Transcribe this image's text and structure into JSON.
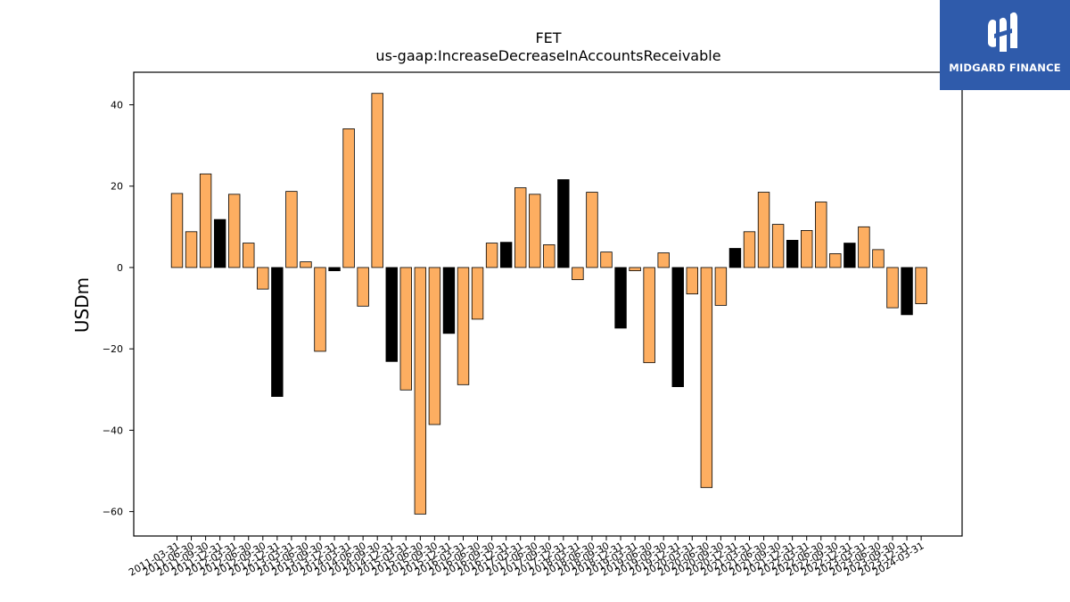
{
  "logo": {
    "text": "MIDGARD FINANCE"
  },
  "chart_data": {
    "type": "bar",
    "title": "FET",
    "subtitle": "us-gaap:IncreaseDecreaseInAccountsReceivable",
    "ylabel": "USDm",
    "ylim": [
      -66,
      48
    ],
    "yticks": [
      -60,
      -40,
      -20,
      0,
      20,
      40
    ],
    "grid": false,
    "colors": {
      "bar": "#fdae61",
      "highlight": "#000000",
      "edge": "#000000"
    },
    "categories": [
      "2011-03-31",
      "2011-06-30",
      "2011-09-30",
      "2011-12-31",
      "2012-03-31",
      "2012-06-30",
      "2012-09-30",
      "2012-12-31",
      "2013-03-31",
      "2013-06-30",
      "2013-09-30",
      "2013-12-31",
      "2014-03-31",
      "2014-06-30",
      "2014-09-30",
      "2014-12-31",
      "2015-03-31",
      "2015-06-30",
      "2015-09-30",
      "2015-12-31",
      "2016-03-31",
      "2016-06-30",
      "2016-09-30",
      "2016-12-31",
      "2017-03-31",
      "2017-06-30",
      "2017-09-30",
      "2017-12-31",
      "2018-03-31",
      "2018-06-30",
      "2018-09-30",
      "2018-12-31",
      "2019-03-31",
      "2019-06-30",
      "2019-09-30",
      "2019-12-31",
      "2020-03-31",
      "2020-06-30",
      "2020-09-30",
      "2020-12-31",
      "2021-03-31",
      "2021-06-30",
      "2021-09-30",
      "2021-12-31",
      "2022-03-31",
      "2022-06-30",
      "2022-09-30",
      "2022-12-31",
      "2023-03-31",
      "2023-06-30",
      "2023-09-30",
      "2023-12-31",
      "2024-03-31"
    ],
    "values": [
      18.2,
      8.8,
      23.0,
      11.8,
      18.0,
      6.0,
      -5.3,
      -31.7,
      18.7,
      1.4,
      -20.6,
      -0.8,
      34.1,
      -9.5,
      42.8,
      -23.1,
      -30.1,
      -60.6,
      -38.6,
      -16.2,
      -28.8,
      -12.7,
      6.0,
      6.2,
      19.6,
      18.0,
      5.6,
      21.6,
      -3.0,
      18.5,
      3.8,
      -14.9,
      -0.8,
      -23.4,
      3.6,
      -29.3,
      -6.5,
      -54.1,
      -9.3,
      4.7,
      8.8,
      18.5,
      10.6,
      6.7,
      9.1,
      16.1,
      3.4,
      6.0,
      10.0,
      4.4,
      -9.9,
      -11.6,
      -8.9
    ],
    "highlight": [
      false,
      false,
      false,
      true,
      false,
      false,
      false,
      true,
      false,
      false,
      false,
      true,
      false,
      false,
      false,
      true,
      false,
      false,
      false,
      true,
      false,
      false,
      false,
      true,
      false,
      false,
      false,
      true,
      false,
      false,
      false,
      true,
      false,
      false,
      false,
      true,
      false,
      false,
      false,
      true,
      false,
      false,
      false,
      true,
      false,
      false,
      false,
      true,
      false,
      false,
      false,
      true,
      false
    ]
  }
}
